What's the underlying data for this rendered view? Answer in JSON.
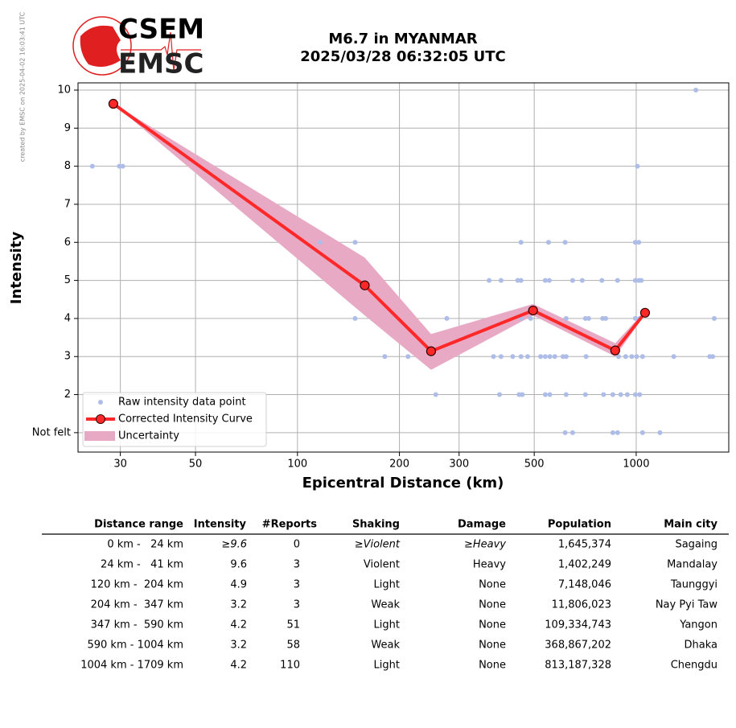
{
  "chart_data": {
    "type": "line",
    "title": "M6.7 in MYANMAR",
    "subtitle": "2025/03/28 06:32:05 UTC",
    "logo_top": "CSEM",
    "logo_bottom": "EMSC",
    "credit": "created by EMSC on 2025-04-02 16:03:41 UTC",
    "x_label": "Epicentral Distance (km)",
    "y_label": "Intensity",
    "x_scale": "log",
    "grid": true,
    "legend": "lower left",
    "xlim": [
      22.5,
      1876
    ],
    "xticks": [
      30,
      50,
      100,
      200,
      300,
      500,
      1000
    ],
    "ylim": [
      0.49,
      10.19
    ],
    "yticks": [
      {
        "value": 1,
        "label": "Not felt"
      },
      2,
      3,
      4,
      5,
      6,
      7,
      8,
      9,
      10
    ],
    "series": [
      {
        "name": "Raw intensity data point",
        "type": "scatter",
        "color": "#aebde8",
        "x": [
          24.8,
          29.8,
          30.5,
          1008,
          1500,
          116.6,
          148,
          457,
          551,
          617,
          994,
          1018,
          368,
          399,
          447,
          457,
          539,
          554,
          649,
          693,
          792,
          881,
          994,
          1018,
          1035,
          148,
          276,
          457,
          488,
          621,
          708,
          724,
          796,
          813,
          994,
          1024,
          1700,
          181,
          212,
          379,
          399,
          432,
          457,
          478,
          522,
          539,
          556,
          575,
          608,
          621,
          711,
          887,
          931,
          970,
          1003,
          1044,
          1291,
          1648,
          1682,
          256,
          395,
          451,
          461,
          539,
          556,
          621,
          708,
          801,
          853,
          900,
          941,
          994,
          1024,
          617,
          649,
          853,
          881,
          1044,
          1175
        ],
        "values": [
          8,
          8,
          8,
          8,
          10,
          6,
          6,
          6,
          6,
          6,
          6,
          6,
          5,
          5,
          5,
          5,
          5,
          5,
          5,
          5,
          5,
          5,
          5,
          5,
          5,
          4,
          4,
          4,
          4,
          4,
          4,
          4,
          4,
          4,
          4,
          4,
          4,
          3,
          3,
          3,
          3,
          3,
          3,
          3,
          3,
          3,
          3,
          3,
          3,
          3,
          3,
          3,
          3,
          3,
          3,
          3,
          3,
          3,
          3,
          2,
          2,
          2,
          2,
          2,
          2,
          2,
          2,
          2,
          2,
          2,
          2,
          2,
          2,
          1,
          1,
          1,
          1,
          1,
          1
        ]
      },
      {
        "name": "Corrected Intensity Curve",
        "type": "line",
        "color": "#ff2828",
        "x": [
          28.6,
          158,
          248,
          496,
          867,
          1062
        ],
        "values": [
          9.64,
          4.87,
          3.14,
          4.21,
          3.16,
          4.15
        ]
      },
      {
        "name": "Uncertainty",
        "type": "band",
        "color": "#e8a9c5",
        "x": [
          28.6,
          158,
          248,
          496,
          867,
          1062
        ],
        "upper": [
          9.64,
          5.6,
          3.59,
          4.38,
          3.35,
          4.2
        ],
        "lower": [
          9.64,
          4.08,
          2.65,
          4.08,
          3.0,
          4.1
        ]
      }
    ]
  },
  "table": {
    "columns": [
      "Distance range",
      "Intensity",
      "#Reports",
      "Shaking",
      "Damage",
      "Population",
      "Main city"
    ],
    "rows": [
      [
        "0 km -   24 km",
        "≥9.6",
        "0",
        "≥Violent",
        "≥Heavy",
        "1,645,374",
        "Sagaing"
      ],
      [
        "24 km -   41 km",
        "9.6",
        "3",
        "Violent",
        "Heavy",
        "1,402,249",
        "Mandalay"
      ],
      [
        "120 km -  204 km",
        "4.9",
        "3",
        "Light",
        "None",
        "7,148,046",
        "Taunggyi"
      ],
      [
        "204 km -  347 km",
        "3.2",
        "3",
        "Weak",
        "None",
        "11,806,023",
        "Nay Pyi Taw"
      ],
      [
        "347 km -  590 km",
        "4.2",
        "51",
        "Light",
        "None",
        "109,334,743",
        "Yangon"
      ],
      [
        "590 km - 1004 km",
        "3.2",
        "58",
        "Weak",
        "None",
        "368,867,202",
        "Dhaka"
      ],
      [
        "1004 km - 1709 km",
        "4.2",
        "110",
        "Light",
        "None",
        "813,187,328",
        "Chengdu"
      ]
    ]
  }
}
